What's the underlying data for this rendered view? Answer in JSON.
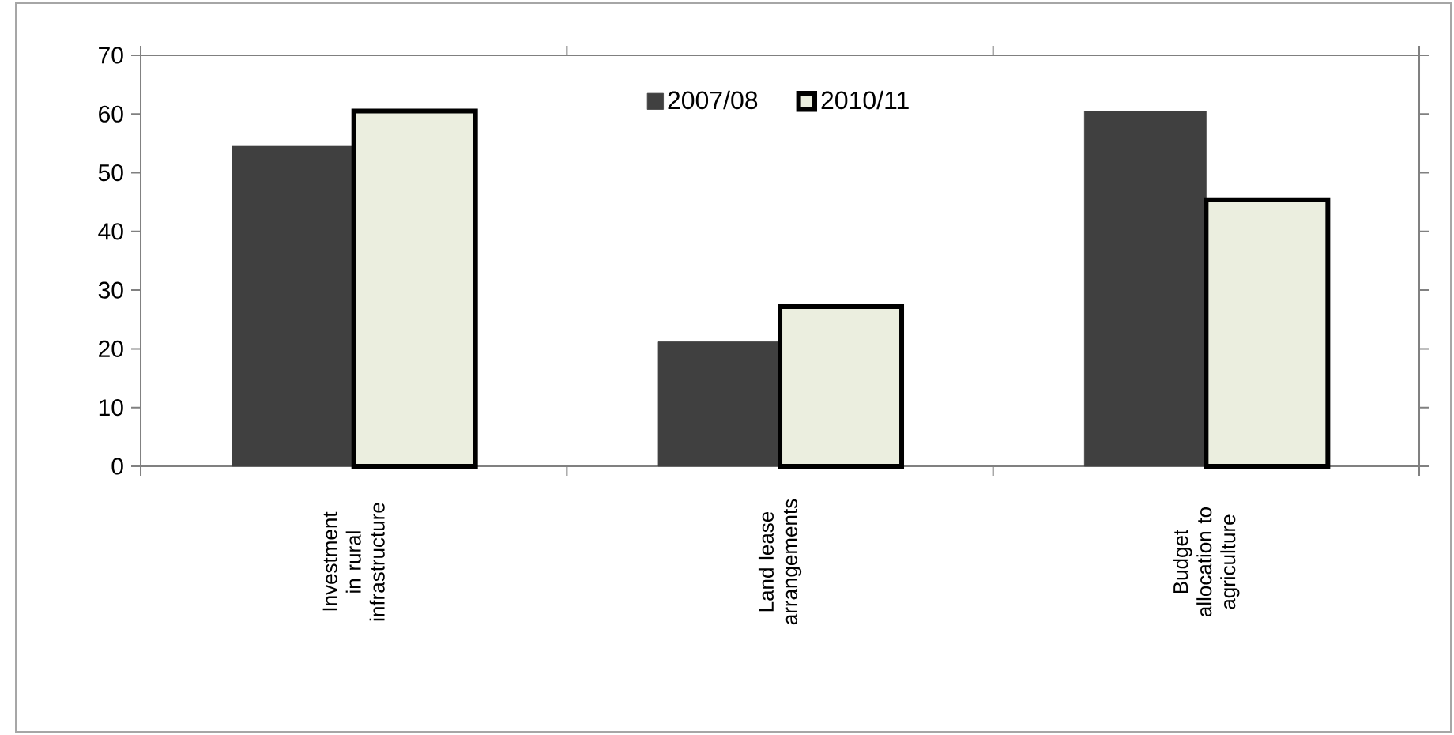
{
  "chart_data": {
    "type": "bar",
    "categories": [
      "Investment in rural infrastructure",
      "Land lease arrangements",
      "Budget allocation to agriculture"
    ],
    "series": [
      {
        "name": "2007/08",
        "color": "#404040",
        "values": [
          54.5,
          21.2,
          60.5
        ]
      },
      {
        "name": "2010/11",
        "color": "#ebeedf",
        "values": [
          60.5,
          27.2,
          45.4
        ]
      }
    ],
    "ylim": [
      0,
      70
    ],
    "yticks": [
      0,
      10,
      20,
      30,
      40,
      50,
      60,
      70
    ],
    "grid": false,
    "legend": "top"
  }
}
